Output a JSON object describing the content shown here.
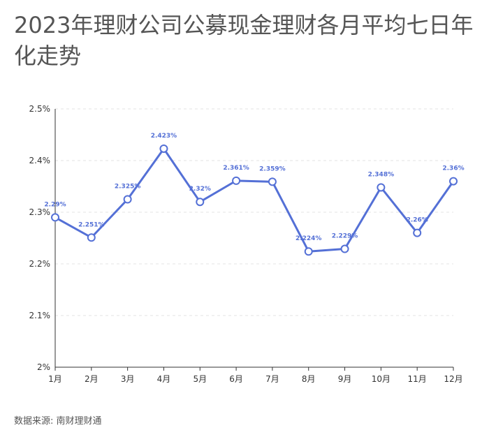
{
  "chart_data": {
    "type": "line",
    "title": "2023年理财公司公募现金理财各月平均七日年化走势",
    "xlabel": "",
    "ylabel": "",
    "categories": [
      "1月",
      "2月",
      "3月",
      "4月",
      "5月",
      "6月",
      "7月",
      "8月",
      "9月",
      "10月",
      "11月",
      "12月"
    ],
    "values": [
      2.29,
      2.251,
      2.325,
      2.423,
      2.32,
      2.361,
      2.359,
      2.224,
      2.229,
      2.348,
      2.26,
      2.36
    ],
    "data_labels": [
      "2.29%",
      "2.251%",
      "2.325%",
      "2.423%",
      "2.32%",
      "2.361%",
      "2.359%",
      "2.224%",
      "2.229%",
      "2.348%",
      "2.26%",
      "2.36%"
    ],
    "ylim": [
      2.0,
      2.5
    ],
    "yticks": [
      2.0,
      2.1,
      2.2,
      2.3,
      2.4,
      2.5
    ],
    "ytick_labels": [
      "2%",
      "2.1%",
      "2.2%",
      "2.3%",
      "2.4%",
      "2.5%"
    ],
    "grid": true,
    "line_color": "#5470d6"
  },
  "source": "数据来源: 南财理财通"
}
